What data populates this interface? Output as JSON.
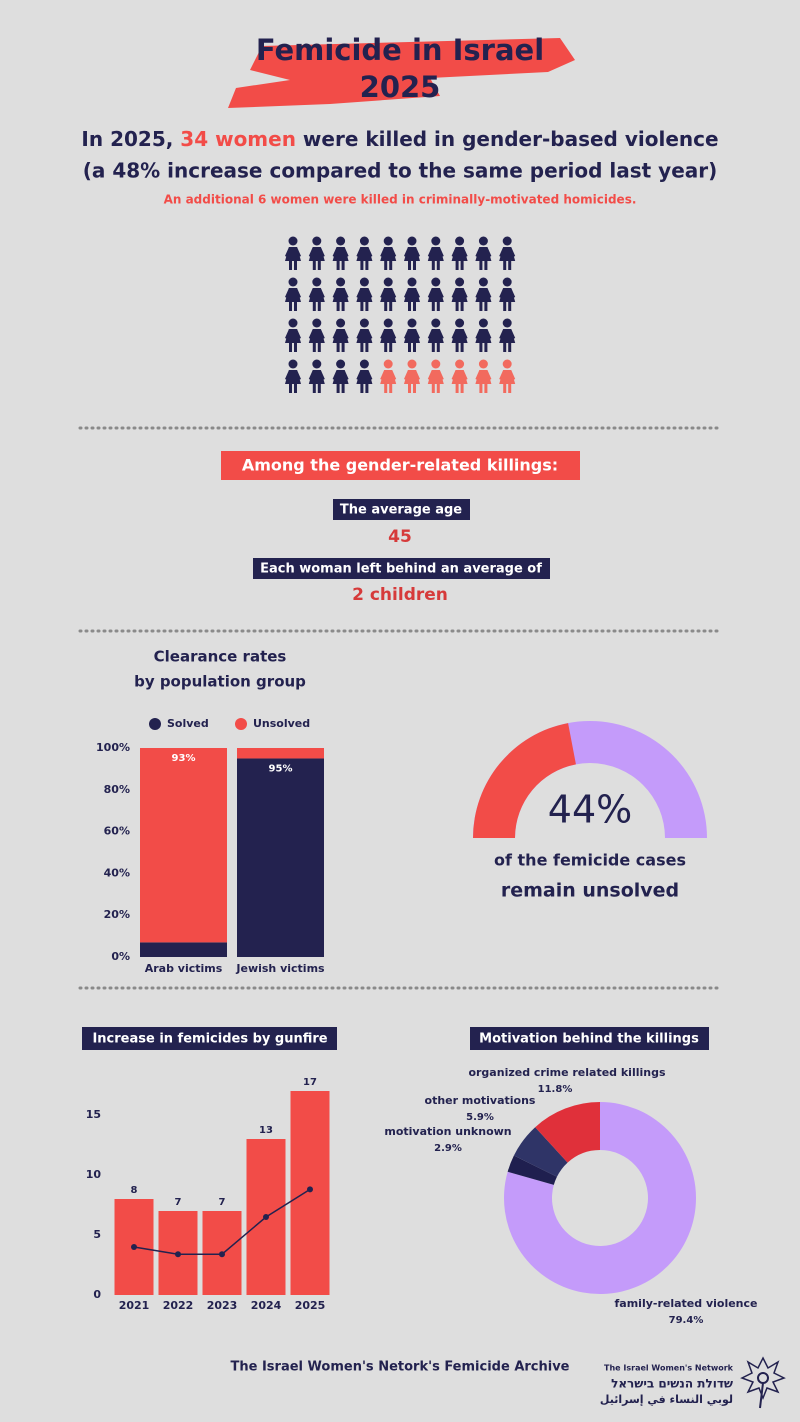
{
  "header": {
    "title_line1": "Femicide in Israel",
    "title_line2": "2025"
  },
  "headline": {
    "before": "In 2025, ",
    "highlight": "34 women",
    "after": " were killed in gender-based violence",
    "line2": "(a 48% increase compared to the same period last year)",
    "note": "An additional 6 women were killed in criminally-motivated homicides."
  },
  "stats": {
    "banner": "Among the gender-related killings:",
    "age_label": "The average age",
    "age_value": "45",
    "children_label": "Each woman left behind an average of",
    "children_value": "2 children"
  },
  "chart_data": [
    {
      "type": "pictogram",
      "values": [
        34,
        6
      ],
      "colors": [
        "#23224f",
        "#f26a5e"
      ],
      "columns": 10
    },
    {
      "type": "stacked-bar",
      "title": [
        "Clearance rates",
        "by population group"
      ],
      "categories": [
        "Arab victims",
        "Jewish victims"
      ],
      "series": [
        {
          "name": "Solved",
          "color": "#23224f",
          "values": [
            7,
            95
          ],
          "value_labels": [
            null,
            "95%"
          ]
        },
        {
          "name": "Unsolved",
          "color": "#f24c48",
          "values": [
            93,
            5
          ],
          "value_labels": [
            "93%",
            null
          ]
        }
      ],
      "ylim": [
        0,
        100
      ],
      "yticks": [
        {
          "value": 0,
          "label": "0%"
        },
        {
          "value": 20,
          "label": "20%"
        },
        {
          "value": 40,
          "label": "40%"
        },
        {
          "value": 60,
          "label": "60%"
        },
        {
          "value": 80,
          "label": "80%"
        },
        {
          "value": 100,
          "label": "100%"
        }
      ]
    },
    {
      "type": "gauge",
      "values": [
        44
      ],
      "value_labels": [
        "44%"
      ],
      "colors": [
        "#f24c48",
        "#c49bfa"
      ],
      "caption": [
        "of the femicide cases",
        "remain unsolved"
      ]
    },
    {
      "type": "bar",
      "title": "Increase in femicides by gunfire",
      "categories": [
        "2021",
        "2022",
        "2023",
        "2024",
        "2025"
      ],
      "series": [
        {
          "type": "bar",
          "color": "#f24c48",
          "values": [
            8,
            7,
            7,
            13,
            17
          ]
        },
        {
          "type": "line",
          "color": "#23224f",
          "values": [
            4,
            3.4,
            3.4,
            6.5,
            8.8
          ]
        }
      ],
      "ylim": [
        0,
        17.5
      ],
      "yticks": [
        0,
        5,
        10,
        15
      ]
    },
    {
      "type": "donut",
      "title": "Motivation behind the killings",
      "categories": [
        "family-related violence",
        "motivation unknown",
        "other motivations",
        "organized crime related killings"
      ],
      "values": [
        79.4,
        2.9,
        5.9,
        11.8
      ],
      "value_labels": [
        "79.4%",
        "2.9%",
        "5.9%",
        "11.8%"
      ],
      "colors": [
        "#c49bfa",
        "#1f1f4f",
        "#2f3467",
        "#e0303a"
      ]
    }
  ],
  "footer": {
    "credit": "The Israel Women's Netork's Femicide Archive",
    "org_en": "The Israel Women's Network",
    "org_he": "שדולת הנשים בישראל",
    "org_ar": "لوبي النساء في إسرائيل"
  }
}
